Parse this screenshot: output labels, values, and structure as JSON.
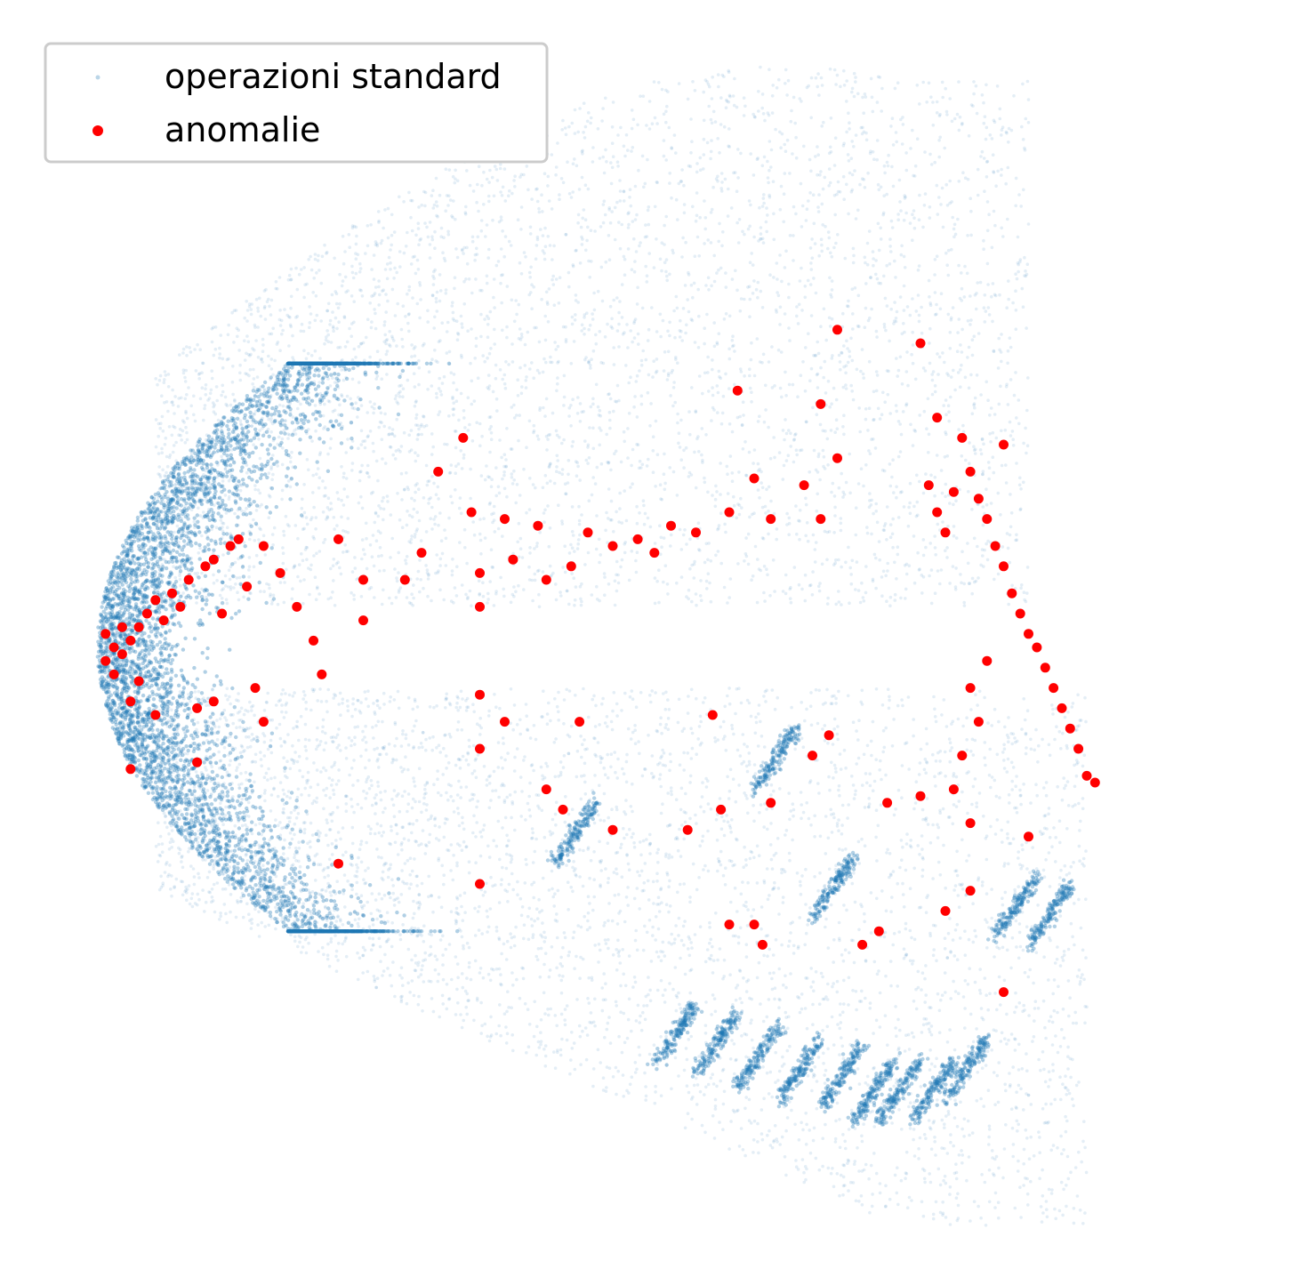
{
  "chart_data": {
    "type": "scatter",
    "axes_visible": false,
    "grid": false,
    "legend_position": "top-left",
    "series": [
      {
        "name": "operazioni standard",
        "color": "#1f77b4",
        "marker": "small dot, very low opacity (dense cloud)",
        "clusters": [
          {
            "shape": "parabolic-left-edge band",
            "x_range": [
              0.1,
              0.8
            ],
            "y_range": [
              -0.4,
              0.4
            ],
            "density": "very high near x≈0.12, y≈0"
          },
          {
            "shape": "upper lobe",
            "x_range": [
              0.2,
              1.2
            ],
            "y_range": [
              0.1,
              0.85
            ],
            "density": "medium"
          },
          {
            "shape": "lower lobe",
            "x_range": [
              0.2,
              1.3
            ],
            "y_range": [
              -0.9,
              -0.1
            ],
            "density": "medium"
          },
          {
            "shape": "lower-right streaks",
            "x_range": [
              0.7,
              1.3
            ],
            "y_range": [
              -0.95,
              -0.55
            ],
            "density": "high"
          }
        ]
      },
      {
        "name": "anomalie",
        "color": "#ff0000",
        "marker": "filled circle",
        "points": [
          [
            0.12,
            0.02
          ],
          [
            0.13,
            0.0
          ],
          [
            0.14,
            0.03
          ],
          [
            0.12,
            -0.02
          ],
          [
            0.15,
            0.01
          ],
          [
            0.16,
            0.03
          ],
          [
            0.13,
            -0.04
          ],
          [
            0.14,
            -0.01
          ],
          [
            0.17,
            0.05
          ],
          [
            0.18,
            0.07
          ],
          [
            0.2,
            0.08
          ],
          [
            0.22,
            0.1
          ],
          [
            0.24,
            0.12
          ],
          [
            0.25,
            0.13
          ],
          [
            0.27,
            0.15
          ],
          [
            0.28,
            0.16
          ],
          [
            0.21,
            0.06
          ],
          [
            0.19,
            0.04
          ],
          [
            0.16,
            -0.05
          ],
          [
            0.15,
            -0.08
          ],
          [
            0.18,
            -0.1
          ],
          [
            0.23,
            -0.09
          ],
          [
            0.26,
            0.05
          ],
          [
            0.29,
            0.09
          ],
          [
            0.31,
            0.15
          ],
          [
            0.33,
            0.11
          ],
          [
            0.35,
            0.06
          ],
          [
            0.37,
            0.01
          ],
          [
            0.38,
            -0.04
          ],
          [
            0.4,
            0.16
          ],
          [
            0.43,
            0.1
          ],
          [
            0.43,
            0.04
          ],
          [
            0.48,
            0.1
          ],
          [
            0.5,
            0.14
          ],
          [
            0.52,
            0.26
          ],
          [
            0.55,
            0.31
          ],
          [
            0.56,
            0.2
          ],
          [
            0.57,
            0.11
          ],
          [
            0.57,
            0.06
          ],
          [
            0.6,
            0.19
          ],
          [
            0.61,
            0.13
          ],
          [
            0.64,
            0.18
          ],
          [
            0.65,
            0.1
          ],
          [
            0.68,
            0.12
          ],
          [
            0.7,
            0.17
          ],
          [
            0.73,
            0.15
          ],
          [
            0.76,
            0.16
          ],
          [
            0.78,
            0.14
          ],
          [
            0.8,
            0.18
          ],
          [
            0.83,
            0.17
          ],
          [
            0.87,
            0.2
          ],
          [
            0.9,
            0.25
          ],
          [
            0.92,
            0.19
          ],
          [
            0.96,
            0.24
          ],
          [
            0.98,
            0.19
          ],
          [
            1.0,
            0.28
          ],
          [
            0.88,
            0.38
          ],
          [
            0.98,
            0.36
          ],
          [
            1.0,
            0.47
          ],
          [
            1.1,
            0.45
          ],
          [
            1.12,
            0.34
          ],
          [
            1.15,
            0.31
          ],
          [
            1.2,
            0.3
          ],
          [
            1.11,
            0.24
          ],
          [
            1.12,
            0.2
          ],
          [
            1.13,
            0.17
          ],
          [
            1.14,
            0.23
          ],
          [
            1.16,
            0.26
          ],
          [
            1.17,
            0.22
          ],
          [
            1.18,
            0.19
          ],
          [
            1.19,
            0.15
          ],
          [
            1.2,
            0.12
          ],
          [
            1.21,
            0.08
          ],
          [
            1.22,
            0.05
          ],
          [
            1.23,
            0.02
          ],
          [
            1.24,
            0.0
          ],
          [
            1.25,
            -0.03
          ],
          [
            1.26,
            -0.06
          ],
          [
            1.27,
            -0.09
          ],
          [
            1.28,
            -0.12
          ],
          [
            1.29,
            -0.15
          ],
          [
            1.3,
            -0.19
          ],
          [
            1.31,
            -0.2
          ],
          [
            1.18,
            -0.02
          ],
          [
            1.16,
            -0.06
          ],
          [
            1.17,
            -0.11
          ],
          [
            1.15,
            -0.16
          ],
          [
            1.14,
            -0.21
          ],
          [
            1.16,
            -0.26
          ],
          [
            0.57,
            -0.07
          ],
          [
            0.57,
            -0.15
          ],
          [
            0.6,
            -0.11
          ],
          [
            0.65,
            -0.21
          ],
          [
            0.67,
            -0.24
          ],
          [
            0.69,
            -0.11
          ],
          [
            0.73,
            -0.27
          ],
          [
            0.85,
            -0.1
          ],
          [
            0.86,
            -0.24
          ],
          [
            0.82,
            -0.27
          ],
          [
            0.92,
            -0.23
          ],
          [
            0.97,
            -0.16
          ],
          [
            0.99,
            -0.13
          ],
          [
            0.87,
            -0.41
          ],
          [
            0.9,
            -0.41
          ],
          [
            0.91,
            -0.44
          ],
          [
            0.4,
            -0.32
          ],
          [
            0.57,
            -0.35
          ],
          [
            1.03,
            -0.44
          ],
          [
            1.05,
            -0.42
          ],
          [
            1.06,
            -0.23
          ],
          [
            1.1,
            -0.22
          ],
          [
            1.13,
            -0.39
          ],
          [
            1.16,
            -0.36
          ],
          [
            1.2,
            -0.51
          ],
          [
            1.23,
            -0.28
          ],
          [
            0.31,
            -0.11
          ],
          [
            0.3,
            -0.06
          ],
          [
            0.25,
            -0.08
          ],
          [
            0.23,
            -0.17
          ],
          [
            0.15,
            -0.18
          ]
        ]
      }
    ]
  }
}
